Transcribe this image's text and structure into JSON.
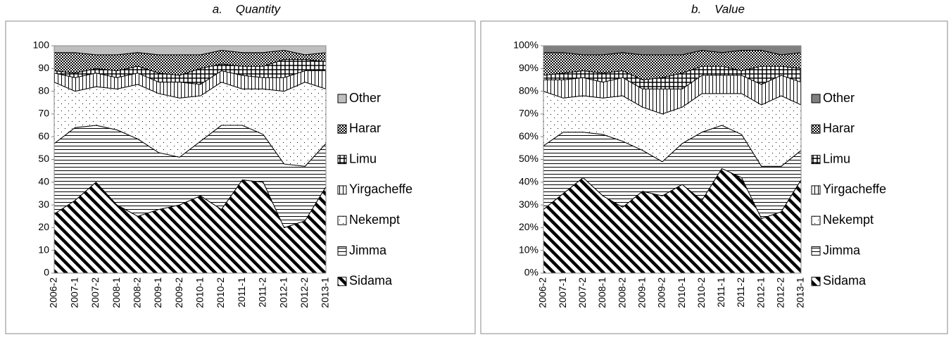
{
  "chart_data": [
    {
      "type": "stacked-area",
      "title": "a.    Quantity",
      "categories": [
        "2006-2",
        "2007-1",
        "2007-2",
        "2008-1",
        "2008-2",
        "2009-1",
        "2009-2",
        "2010-1",
        "2010-2",
        "2011-1",
        "2011-2",
        "2012-1",
        "2012-2",
        "2013-1"
      ],
      "ylim": [
        0,
        100
      ],
      "yticks": [
        0,
        10,
        20,
        30,
        40,
        50,
        60,
        70,
        80,
        90,
        100
      ],
      "series": [
        {
          "name": "Sidama",
          "color": "#000000",
          "values": [
            26,
            32,
            40,
            30,
            25,
            28,
            30,
            34,
            28,
            41,
            40,
            20,
            23,
            38
          ]
        },
        {
          "name": "Jimma",
          "color": "#000000",
          "values": [
            31,
            32,
            25,
            33,
            34,
            25,
            21,
            24,
            37,
            24,
            21,
            28,
            24,
            19
          ]
        },
        {
          "name": "Nekempt",
          "color": "#000000",
          "values": [
            27,
            16,
            17,
            18,
            24,
            26,
            26,
            20,
            19,
            16,
            20,
            32,
            37,
            24
          ]
        },
        {
          "name": "Yirgacheffe",
          "color": "#000000",
          "values": [
            4,
            6,
            6,
            5,
            5,
            5,
            7,
            5,
            5,
            6,
            5,
            6,
            5,
            8
          ]
        },
        {
          "name": "Limu",
          "color": "#000000",
          "values": [
            1,
            2,
            2,
            3,
            3,
            4,
            3,
            7,
            3,
            4,
            5,
            8,
            5,
            4
          ]
        },
        {
          "name": "Harar",
          "color": "#000000",
          "values": [
            8,
            9,
            6,
            7,
            6,
            8,
            9,
            6,
            6,
            6,
            6,
            4,
            2,
            4
          ]
        },
        {
          "name": "Other",
          "color": "#bfbfbf",
          "values": [
            3,
            3,
            4,
            4,
            3,
            4,
            4,
            4,
            2,
            3,
            3,
            2,
            4,
            3
          ]
        }
      ]
    },
    {
      "type": "stacked-area",
      "title": "b.    Value",
      "categories": [
        "2006-2",
        "2007-1",
        "2007-2",
        "2008-1",
        "2008-2",
        "2009-1",
        "2009-2",
        "2010-1",
        "2010-2",
        "2011-1",
        "2011-2",
        "2012-1",
        "2012-2",
        "2013-1"
      ],
      "ylim": [
        0,
        100
      ],
      "yticks": [
        {
          "value": 0,
          "label": "0%"
        },
        {
          "value": 10,
          "label": "10%"
        },
        {
          "value": 20,
          "label": "20%"
        },
        {
          "value": 30,
          "label": "30%"
        },
        {
          "value": 40,
          "label": "40%"
        },
        {
          "value": 50,
          "label": "50%"
        },
        {
          "value": 60,
          "label": "60%"
        },
        {
          "value": 70,
          "label": "70%"
        },
        {
          "value": 80,
          "label": "80%"
        },
        {
          "value": 90,
          "label": "90%"
        },
        {
          "value": 100,
          "label": "100%"
        }
      ],
      "series": [
        {
          "name": "Sidama",
          "color": "#000000",
          "values": [
            28,
            35,
            42,
            34,
            29,
            36,
            34,
            39,
            32,
            46,
            42,
            24,
            27,
            41
          ]
        },
        {
          "name": "Jimma",
          "color": "#000000",
          "values": [
            28,
            27,
            20,
            27,
            29,
            18,
            15,
            18,
            30,
            19,
            19,
            23,
            20,
            13
          ]
        },
        {
          "name": "Nekempt",
          "color": "#000000",
          "values": [
            24,
            15,
            16,
            16,
            20,
            19,
            21,
            16,
            17,
            14,
            18,
            27,
            31,
            20
          ]
        },
        {
          "name": "Yirgacheffe",
          "color": "#000000",
          "values": [
            5,
            8,
            8,
            7,
            8,
            8,
            11,
            8,
            8,
            8,
            8,
            9,
            9,
            10
          ]
        },
        {
          "name": "Limu",
          "color": "#000000",
          "values": [
            2,
            3,
            3,
            4,
            3,
            4,
            5,
            7,
            4,
            4,
            2,
            8,
            4,
            6
          ]
        },
        {
          "name": "Harar",
          "color": "#000000",
          "values": [
            10,
            9,
            7,
            8,
            8,
            11,
            10,
            8,
            7,
            6,
            9,
            7,
            5,
            7
          ]
        },
        {
          "name": "Other",
          "color": "#808080",
          "values": [
            3,
            3,
            4,
            4,
            3,
            4,
            4,
            4,
            2,
            3,
            2,
            2,
            4,
            3
          ]
        }
      ]
    }
  ]
}
